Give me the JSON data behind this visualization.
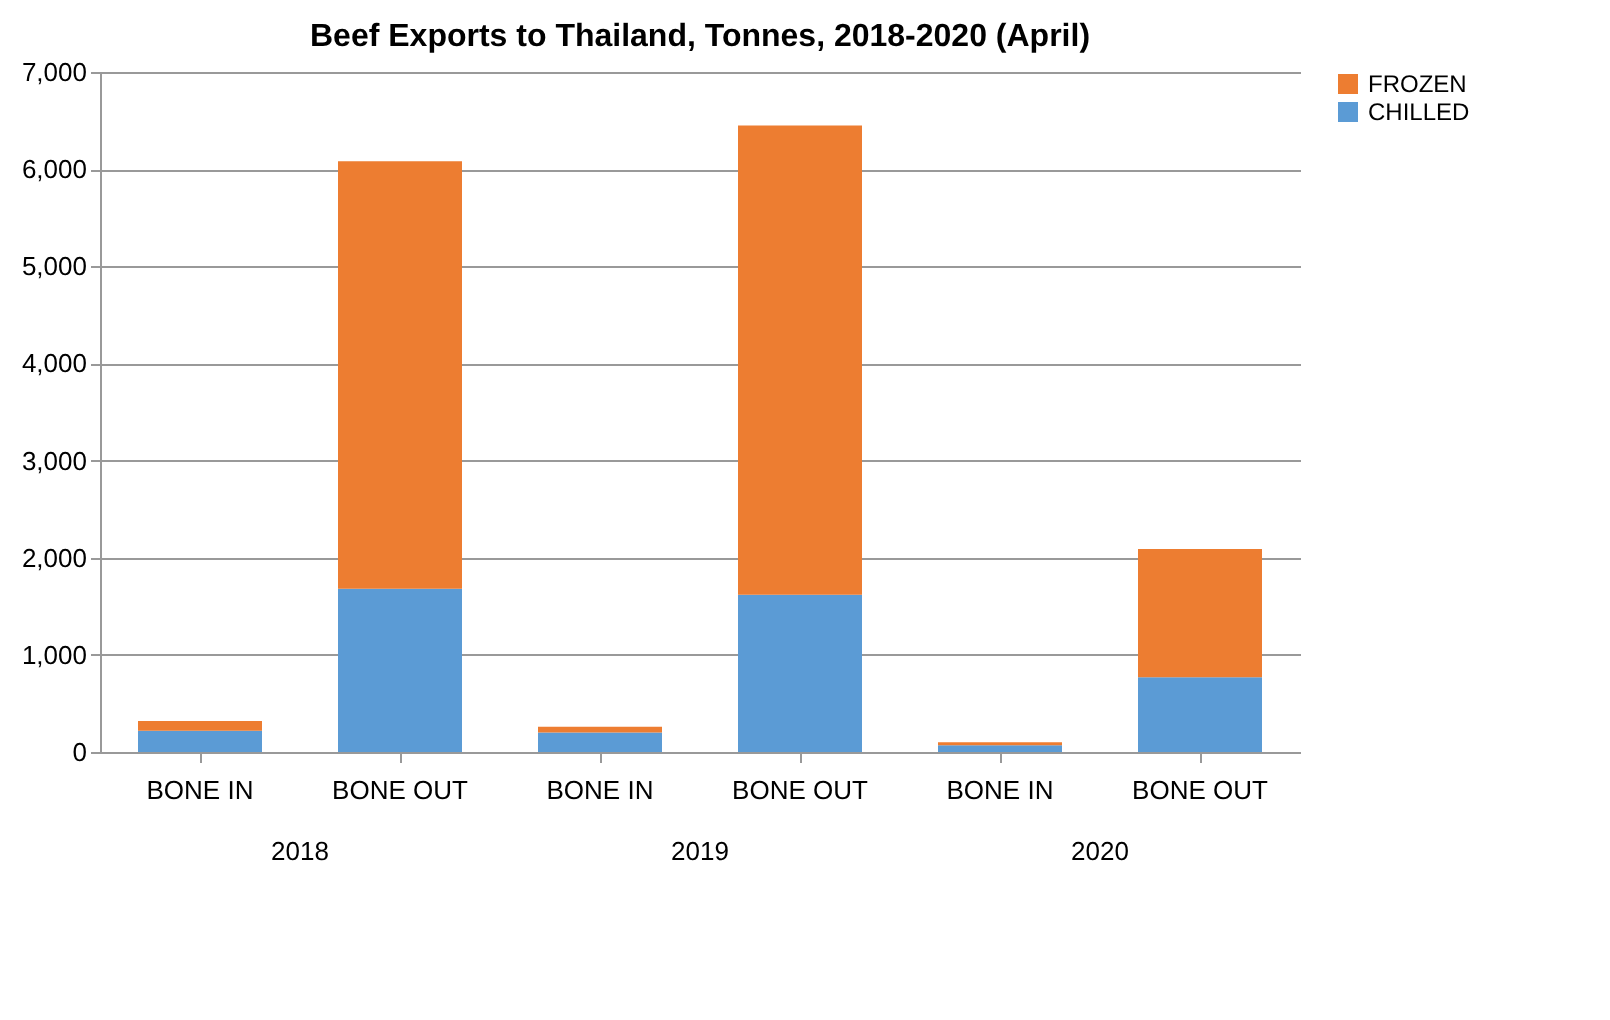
{
  "chart_data": {
    "type": "bar",
    "title": "Beef Exports to Thailand, Tonnes, 2018-2020 (April)",
    "categories": [
      "BONE IN",
      "BONE OUT",
      "BONE IN",
      "BONE OUT",
      "BONE IN",
      "BONE OUT"
    ],
    "series": [
      {
        "name": "CHILLED",
        "color": "#5b9bd5",
        "values": [
          220,
          1680,
          200,
          1620,
          70,
          770
        ]
      },
      {
        "name": "FROZEN",
        "color": "#ed7d31",
        "values": [
          100,
          4400,
          60,
          4830,
          30,
          1320
        ]
      }
    ],
    "stacked": true,
    "ylim": [
      0,
      7000
    ],
    "yticks": [
      0,
      {
        "value": 1000,
        "label": "1,000"
      },
      {
        "value": 2000,
        "label": "2,000"
      },
      {
        "value": 3000,
        "label": "3,000"
      },
      {
        "value": 4000,
        "label": "4,000"
      },
      {
        "value": 5000,
        "label": "5,000"
      },
      {
        "value": 6000,
        "label": "6,000"
      },
      {
        "value": 7000,
        "label": "7,000"
      }
    ],
    "grid": "y",
    "legend": "right",
    "annotations": [
      "2018",
      "2019",
      "2020"
    ]
  }
}
